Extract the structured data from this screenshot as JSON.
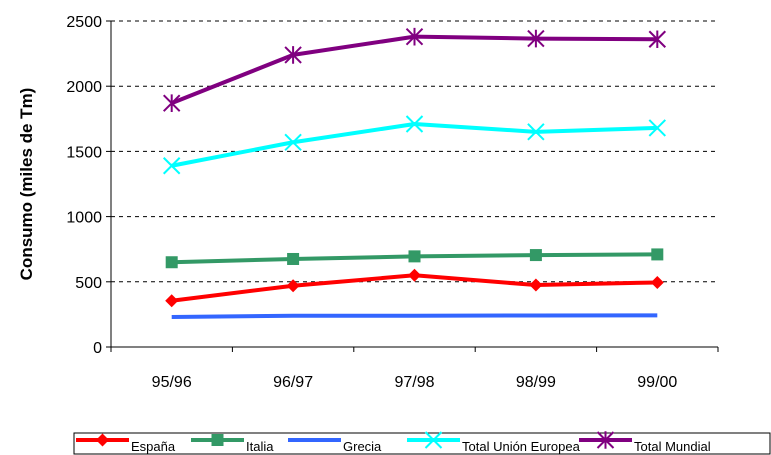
{
  "chart_data": {
    "type": "line",
    "title": "",
    "xlabel": "",
    "ylabel": "Consumo (miles de Tm)",
    "categories": [
      "95/96",
      "96/97",
      "97/98",
      "98/99",
      "99/00"
    ],
    "ylim": [
      0,
      2500
    ],
    "yticks": [
      0,
      500,
      1000,
      1500,
      2000,
      2500
    ],
    "grid": "horizontal dashed",
    "legend_position": "bottom",
    "series": [
      {
        "name": "España",
        "values": [
          355,
          470,
          550,
          475,
          495
        ],
        "color": "#ff0000",
        "marker": "diamond"
      },
      {
        "name": "Italia",
        "values": [
          650,
          675,
          695,
          705,
          710
        ],
        "color": "#339966",
        "marker": "square"
      },
      {
        "name": "Grecia",
        "values": [
          230,
          240,
          240,
          242,
          243
        ],
        "color": "#3366ff",
        "marker": "none"
      },
      {
        "name": "Total Unión Europea",
        "values": [
          1390,
          1570,
          1710,
          1650,
          1680
        ],
        "color": "#00ffff",
        "marker": "x"
      },
      {
        "name": "Total Mundial",
        "values": [
          1870,
          2240,
          2380,
          2365,
          2360
        ],
        "color": "#800080",
        "marker": "star"
      }
    ]
  }
}
